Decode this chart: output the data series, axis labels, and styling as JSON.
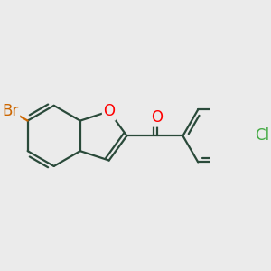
{
  "background_color": "#ebebeb",
  "bond_color": "#2a4a3a",
  "bond_width": 1.6,
  "dbo": 0.055,
  "atom_colors": {
    "O": "#ff0000",
    "Br": "#cc6600",
    "Cl": "#44aa44"
  },
  "font_size": 12
}
